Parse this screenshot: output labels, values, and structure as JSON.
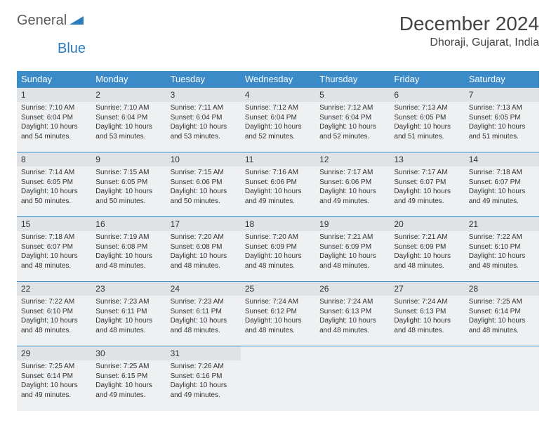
{
  "logo": {
    "general": "General",
    "blue": "Blue"
  },
  "title": "December 2024",
  "location": "Dhoraji, Gujarat, India",
  "colors": {
    "header_bg": "#3b8bc9",
    "header_fg": "#ffffff",
    "daynum_bg": "#dfe3e6",
    "cell_bg": "#eef0f2",
    "border": "#3b8bc9",
    "logo_gray": "#5a5a5a",
    "logo_blue": "#2b7bbf"
  },
  "weekdays": [
    "Sunday",
    "Monday",
    "Tuesday",
    "Wednesday",
    "Thursday",
    "Friday",
    "Saturday"
  ],
  "weeks": [
    [
      {
        "day": "1",
        "sunrise": "Sunrise: 7:10 AM",
        "sunset": "Sunset: 6:04 PM",
        "daylight": "Daylight: 10 hours and 54 minutes."
      },
      {
        "day": "2",
        "sunrise": "Sunrise: 7:10 AM",
        "sunset": "Sunset: 6:04 PM",
        "daylight": "Daylight: 10 hours and 53 minutes."
      },
      {
        "day": "3",
        "sunrise": "Sunrise: 7:11 AM",
        "sunset": "Sunset: 6:04 PM",
        "daylight": "Daylight: 10 hours and 53 minutes."
      },
      {
        "day": "4",
        "sunrise": "Sunrise: 7:12 AM",
        "sunset": "Sunset: 6:04 PM",
        "daylight": "Daylight: 10 hours and 52 minutes."
      },
      {
        "day": "5",
        "sunrise": "Sunrise: 7:12 AM",
        "sunset": "Sunset: 6:04 PM",
        "daylight": "Daylight: 10 hours and 52 minutes."
      },
      {
        "day": "6",
        "sunrise": "Sunrise: 7:13 AM",
        "sunset": "Sunset: 6:05 PM",
        "daylight": "Daylight: 10 hours and 51 minutes."
      },
      {
        "day": "7",
        "sunrise": "Sunrise: 7:13 AM",
        "sunset": "Sunset: 6:05 PM",
        "daylight": "Daylight: 10 hours and 51 minutes."
      }
    ],
    [
      {
        "day": "8",
        "sunrise": "Sunrise: 7:14 AM",
        "sunset": "Sunset: 6:05 PM",
        "daylight": "Daylight: 10 hours and 50 minutes."
      },
      {
        "day": "9",
        "sunrise": "Sunrise: 7:15 AM",
        "sunset": "Sunset: 6:05 PM",
        "daylight": "Daylight: 10 hours and 50 minutes."
      },
      {
        "day": "10",
        "sunrise": "Sunrise: 7:15 AM",
        "sunset": "Sunset: 6:06 PM",
        "daylight": "Daylight: 10 hours and 50 minutes."
      },
      {
        "day": "11",
        "sunrise": "Sunrise: 7:16 AM",
        "sunset": "Sunset: 6:06 PM",
        "daylight": "Daylight: 10 hours and 49 minutes."
      },
      {
        "day": "12",
        "sunrise": "Sunrise: 7:17 AM",
        "sunset": "Sunset: 6:06 PM",
        "daylight": "Daylight: 10 hours and 49 minutes."
      },
      {
        "day": "13",
        "sunrise": "Sunrise: 7:17 AM",
        "sunset": "Sunset: 6:07 PM",
        "daylight": "Daylight: 10 hours and 49 minutes."
      },
      {
        "day": "14",
        "sunrise": "Sunrise: 7:18 AM",
        "sunset": "Sunset: 6:07 PM",
        "daylight": "Daylight: 10 hours and 49 minutes."
      }
    ],
    [
      {
        "day": "15",
        "sunrise": "Sunrise: 7:18 AM",
        "sunset": "Sunset: 6:07 PM",
        "daylight": "Daylight: 10 hours and 48 minutes."
      },
      {
        "day": "16",
        "sunrise": "Sunrise: 7:19 AM",
        "sunset": "Sunset: 6:08 PM",
        "daylight": "Daylight: 10 hours and 48 minutes."
      },
      {
        "day": "17",
        "sunrise": "Sunrise: 7:20 AM",
        "sunset": "Sunset: 6:08 PM",
        "daylight": "Daylight: 10 hours and 48 minutes."
      },
      {
        "day": "18",
        "sunrise": "Sunrise: 7:20 AM",
        "sunset": "Sunset: 6:09 PM",
        "daylight": "Daylight: 10 hours and 48 minutes."
      },
      {
        "day": "19",
        "sunrise": "Sunrise: 7:21 AM",
        "sunset": "Sunset: 6:09 PM",
        "daylight": "Daylight: 10 hours and 48 minutes."
      },
      {
        "day": "20",
        "sunrise": "Sunrise: 7:21 AM",
        "sunset": "Sunset: 6:09 PM",
        "daylight": "Daylight: 10 hours and 48 minutes."
      },
      {
        "day": "21",
        "sunrise": "Sunrise: 7:22 AM",
        "sunset": "Sunset: 6:10 PM",
        "daylight": "Daylight: 10 hours and 48 minutes."
      }
    ],
    [
      {
        "day": "22",
        "sunrise": "Sunrise: 7:22 AM",
        "sunset": "Sunset: 6:10 PM",
        "daylight": "Daylight: 10 hours and 48 minutes."
      },
      {
        "day": "23",
        "sunrise": "Sunrise: 7:23 AM",
        "sunset": "Sunset: 6:11 PM",
        "daylight": "Daylight: 10 hours and 48 minutes."
      },
      {
        "day": "24",
        "sunrise": "Sunrise: 7:23 AM",
        "sunset": "Sunset: 6:11 PM",
        "daylight": "Daylight: 10 hours and 48 minutes."
      },
      {
        "day": "25",
        "sunrise": "Sunrise: 7:24 AM",
        "sunset": "Sunset: 6:12 PM",
        "daylight": "Daylight: 10 hours and 48 minutes."
      },
      {
        "day": "26",
        "sunrise": "Sunrise: 7:24 AM",
        "sunset": "Sunset: 6:13 PM",
        "daylight": "Daylight: 10 hours and 48 minutes."
      },
      {
        "day": "27",
        "sunrise": "Sunrise: 7:24 AM",
        "sunset": "Sunset: 6:13 PM",
        "daylight": "Daylight: 10 hours and 48 minutes."
      },
      {
        "day": "28",
        "sunrise": "Sunrise: 7:25 AM",
        "sunset": "Sunset: 6:14 PM",
        "daylight": "Daylight: 10 hours and 48 minutes."
      }
    ],
    [
      {
        "day": "29",
        "sunrise": "Sunrise: 7:25 AM",
        "sunset": "Sunset: 6:14 PM",
        "daylight": "Daylight: 10 hours and 49 minutes."
      },
      {
        "day": "30",
        "sunrise": "Sunrise: 7:25 AM",
        "sunset": "Sunset: 6:15 PM",
        "daylight": "Daylight: 10 hours and 49 minutes."
      },
      {
        "day": "31",
        "sunrise": "Sunrise: 7:26 AM",
        "sunset": "Sunset: 6:16 PM",
        "daylight": "Daylight: 10 hours and 49 minutes."
      },
      null,
      null,
      null,
      null
    ]
  ]
}
